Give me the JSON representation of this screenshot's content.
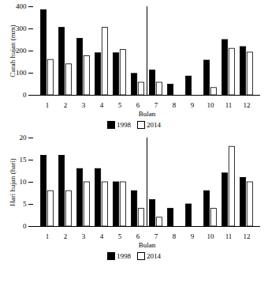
{
  "chart_data": [
    {
      "type": "bar",
      "x_label": "Bulan",
      "y_label": "Curah hujan (mm)",
      "categories": [
        "1",
        "2",
        "3",
        "4",
        "5",
        "6",
        "7",
        "8",
        "9",
        "10",
        "11",
        "12"
      ],
      "series": [
        {
          "name": "1998",
          "color": "#000000",
          "values": [
            385,
            305,
            255,
            190,
            190,
            97,
            112,
            48,
            85,
            157,
            250,
            218
          ]
        },
        {
          "name": "2014",
          "color": "#ffffff",
          "values": [
            160,
            140,
            177,
            305,
            205,
            57,
            57,
            0,
            0,
            33,
            210,
            193
          ]
        }
      ],
      "ylim": [
        0,
        400
      ],
      "yticks": [
        0,
        100,
        200,
        300,
        400
      ],
      "grid": false,
      "legend": "bottom"
    },
    {
      "type": "bar",
      "x_label": "Bulan",
      "y_label": "Hari hujan (hari)",
      "categories": [
        "1",
        "2",
        "3",
        "4",
        "5",
        "6",
        "7",
        "8",
        "9",
        "10",
        "11",
        "12"
      ],
      "series": [
        {
          "name": "1998",
          "color": "#000000",
          "values": [
            16,
            16,
            13,
            13,
            10,
            8,
            6,
            4,
            5,
            8,
            12,
            11
          ]
        },
        {
          "name": "2014",
          "color": "#ffffff",
          "values": [
            8,
            8,
            10,
            10,
            10,
            4,
            2,
            0,
            0,
            4,
            18,
            10
          ]
        }
      ],
      "ylim": [
        0,
        20
      ],
      "yticks": [
        0,
        5,
        10,
        15,
        20
      ],
      "grid": false,
      "legend": "bottom"
    }
  ]
}
